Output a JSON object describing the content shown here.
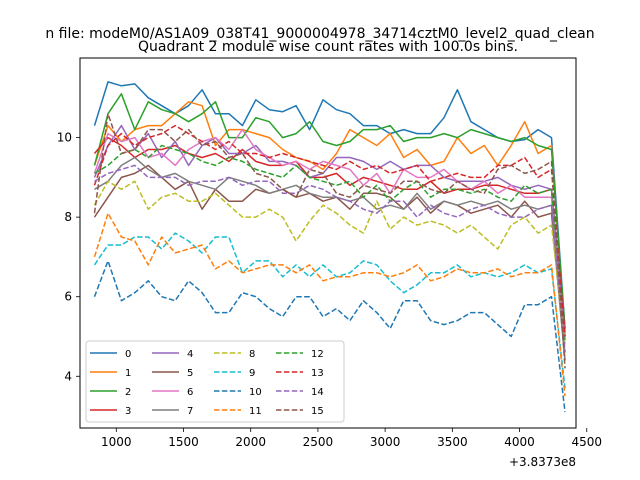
{
  "figure": {
    "suptitle": "n file: modeM0/AS1A09_038T41_9000004978_34714cztM0_level2_quad_clean",
    "title": "Quadrant 2 module wise count rates with 100.0s bins.",
    "offset_label": "+3.8373e8"
  },
  "chart_data": {
    "type": "line",
    "title": "Quadrant 2 module wise count rates with 100.0s bins.",
    "xlabel": "",
    "ylabel": "",
    "xlim": [
      730,
      4420
    ],
    "ylim": [
      2.7,
      12.0
    ],
    "xticks": [
      1000,
      1500,
      2000,
      2500,
      3000,
      3500,
      4000,
      4500
    ],
    "yticks": [
      4,
      6,
      8,
      10
    ],
    "grid": false,
    "legend_position": "lower-left",
    "x": [
      838,
      938,
      1038,
      1138,
      1238,
      1338,
      1438,
      1538,
      1638,
      1738,
      1838,
      1938,
      2038,
      2138,
      2238,
      2338,
      2438,
      2538,
      2638,
      2738,
      2838,
      2938,
      3038,
      3138,
      3238,
      3338,
      3438,
      3538,
      3638,
      3738,
      3838,
      3938,
      4038,
      4138,
      4238,
      4338
    ],
    "series": [
      {
        "name": "0",
        "color": "#1f77b4",
        "dash": "solid",
        "values": [
          10.3,
          11.4,
          11.3,
          11.35,
          11.0,
          10.8,
          10.6,
          10.8,
          11.2,
          10.6,
          10.6,
          10.3,
          10.95,
          10.7,
          10.65,
          10.8,
          10.2,
          10.95,
          10.7,
          10.6,
          10.3,
          10.3,
          10.1,
          10.2,
          10.1,
          10.1,
          10.5,
          11.2,
          10.4,
          10.2,
          10.0,
          9.9,
          9.95,
          10.2,
          10.0,
          5.2
        ]
      },
      {
        "name": "1",
        "color": "#ff7f0e",
        "dash": "solid",
        "values": [
          9.3,
          10.3,
          9.9,
          10.2,
          10.3,
          10.3,
          10.6,
          10.9,
          10.8,
          9.8,
          10.2,
          10.2,
          10.1,
          10.0,
          9.7,
          9.5,
          9.4,
          9.2,
          9.6,
          10.2,
          10.0,
          9.8,
          10.1,
          9.5,
          9.7,
          9.3,
          9.4,
          10.0,
          9.6,
          9.8,
          9.3,
          9.8,
          10.4,
          9.6,
          9.8,
          5.0
        ]
      },
      {
        "name": "2",
        "color": "#2ca02c",
        "dash": "solid",
        "values": [
          9.3,
          10.6,
          11.1,
          10.2,
          10.9,
          10.7,
          10.6,
          10.4,
          10.6,
          10.9,
          10.0,
          10.0,
          10.5,
          10.4,
          10.0,
          10.1,
          10.4,
          9.9,
          9.8,
          9.9,
          10.2,
          10.2,
          10.3,
          9.9,
          10.0,
          10.0,
          10.1,
          10.0,
          10.2,
          10.1,
          10.0,
          9.9,
          10.0,
          9.8,
          9.7,
          5.2
        ]
      },
      {
        "name": "3",
        "color": "#d62728",
        "dash": "solid",
        "values": [
          9.6,
          10.0,
          9.8,
          9.5,
          9.7,
          9.7,
          9.8,
          9.6,
          9.5,
          9.6,
          9.4,
          9.7,
          9.4,
          9.3,
          9.3,
          9.4,
          9.0,
          9.0,
          9.1,
          8.8,
          9.0,
          8.9,
          8.8,
          8.7,
          8.7,
          8.9,
          8.6,
          8.7,
          8.7,
          8.8,
          8.8,
          8.7,
          8.6,
          8.6,
          8.7,
          5.1
        ]
      },
      {
        "name": "4",
        "color": "#9467bd",
        "dash": "solid",
        "values": [
          9.0,
          9.8,
          10.3,
          9.7,
          10.1,
          9.5,
          9.9,
          9.3,
          9.8,
          10.0,
          9.6,
          9.6,
          9.8,
          9.4,
          9.4,
          9.3,
          9.0,
          9.1,
          9.5,
          9.5,
          9.4,
          9.2,
          9.4,
          9.2,
          9.3,
          9.3,
          9.0,
          8.9,
          8.9,
          8.9,
          9.0,
          8.8,
          8.7,
          8.8,
          8.7,
          5.0
        ]
      },
      {
        "name": "5",
        "color": "#8c564b",
        "dash": "solid",
        "values": [
          8.0,
          8.5,
          9.0,
          9.1,
          9.3,
          9.0,
          8.7,
          8.9,
          8.2,
          8.7,
          8.4,
          8.4,
          8.7,
          8.6,
          8.7,
          8.5,
          8.6,
          8.4,
          8.5,
          8.2,
          8.6,
          8.6,
          8.5,
          8.2,
          8.5,
          8.1,
          8.4,
          8.3,
          8.1,
          8.2,
          8.3,
          8.0,
          8.4,
          8.0,
          8.1,
          4.4
        ]
      },
      {
        "name": "6",
        "color": "#e377c2",
        "dash": "solid",
        "values": [
          9.1,
          10.1,
          9.9,
          10.0,
          9.5,
          9.6,
          9.3,
          9.7,
          9.9,
          10.0,
          9.7,
          10.2,
          9.7,
          9.5,
          9.3,
          9.4,
          9.2,
          9.4,
          9.3,
          9.2,
          8.8,
          9.1,
          8.6,
          9.2,
          9.0,
          9.0,
          9.2,
          8.9,
          8.7,
          8.9,
          8.6,
          8.8,
          8.5,
          8.5,
          8.5,
          4.6
        ]
      },
      {
        "name": "7",
        "color": "#7f7f7f",
        "dash": "solid",
        "values": [
          8.7,
          8.9,
          9.3,
          9.5,
          9.2,
          9.0,
          9.1,
          8.9,
          8.8,
          8.7,
          9.0,
          8.9,
          8.8,
          8.6,
          8.7,
          8.8,
          8.6,
          8.5,
          8.5,
          8.4,
          8.5,
          8.2,
          8.3,
          8.2,
          8.6,
          8.2,
          8.4,
          8.3,
          8.4,
          8.3,
          8.4,
          8.2,
          8.3,
          8.2,
          8.3,
          4.4
        ]
      },
      {
        "name": "8",
        "color": "#bcbd22",
        "dash": "dashed",
        "values": [
          8.3,
          8.9,
          8.7,
          8.9,
          8.2,
          8.5,
          8.6,
          8.4,
          8.4,
          8.6,
          8.3,
          8.0,
          8.0,
          8.2,
          8.0,
          7.4,
          7.9,
          8.3,
          8.1,
          7.8,
          7.6,
          8.4,
          7.7,
          8.0,
          7.8,
          7.9,
          7.8,
          7.6,
          7.8,
          7.5,
          7.2,
          7.8,
          8.0,
          7.6,
          7.8,
          4.8
        ]
      },
      {
        "name": "9",
        "color": "#17becf",
        "dash": "dashed",
        "values": [
          6.8,
          7.3,
          7.3,
          7.5,
          7.5,
          7.2,
          7.6,
          7.4,
          7.1,
          7.5,
          7.5,
          6.6,
          6.9,
          6.9,
          6.5,
          6.8,
          6.5,
          6.8,
          6.5,
          6.6,
          6.9,
          6.8,
          6.4,
          6.1,
          6.3,
          6.6,
          6.6,
          6.8,
          6.5,
          6.6,
          6.5,
          6.6,
          6.8,
          6.6,
          6.7,
          3.7
        ]
      },
      {
        "name": "10",
        "color": "#1f77b4",
        "dash": "dashed",
        "values": [
          6.0,
          6.9,
          5.9,
          6.1,
          6.4,
          6.0,
          5.9,
          6.4,
          6.1,
          5.6,
          5.6,
          6.1,
          6.0,
          5.7,
          5.5,
          6.0,
          6.0,
          5.5,
          5.7,
          5.4,
          5.9,
          5.6,
          5.2,
          5.9,
          5.9,
          5.4,
          5.3,
          5.4,
          5.6,
          5.6,
          5.3,
          5.0,
          5.8,
          5.8,
          6.0,
          3.1
        ]
      },
      {
        "name": "11",
        "color": "#ff7f0e",
        "dash": "dashed",
        "values": [
          7.0,
          8.1,
          7.5,
          7.4,
          6.8,
          7.5,
          7.1,
          7.2,
          7.3,
          6.7,
          6.9,
          6.6,
          6.7,
          6.8,
          6.8,
          6.6,
          6.8,
          6.4,
          6.5,
          6.5,
          6.6,
          6.6,
          6.5,
          6.6,
          6.8,
          6.4,
          6.5,
          6.7,
          6.6,
          6.6,
          6.7,
          6.5,
          6.6,
          6.6,
          6.8,
          3.5
        ]
      },
      {
        "name": "12",
        "color": "#2ca02c",
        "dash": "dashed",
        "values": [
          9.1,
          9.3,
          9.6,
          9.7,
          9.5,
          9.8,
          9.7,
          9.6,
          9.4,
          9.3,
          9.5,
          9.4,
          9.2,
          9.1,
          9.0,
          9.3,
          9.0,
          8.9,
          8.8,
          8.9,
          8.5,
          8.8,
          8.4,
          8.7,
          8.9,
          8.5,
          8.7,
          8.7,
          8.6,
          8.7,
          8.5,
          8.4,
          8.8,
          8.6,
          8.7,
          4.9
        ]
      },
      {
        "name": "13",
        "color": "#d62728",
        "dash": "dashed",
        "values": [
          8.8,
          9.8,
          10.1,
          9.8,
          10.0,
          10.1,
          10.3,
          10.1,
          9.9,
          9.7,
          9.9,
          9.6,
          9.6,
          9.5,
          9.6,
          9.5,
          9.4,
          9.3,
          9.2,
          9.4,
          9.2,
          9.3,
          9.1,
          9.2,
          9.3,
          8.9,
          9.0,
          9.1,
          9.0,
          9.0,
          9.3,
          9.3,
          9.5,
          9.0,
          9.2,
          5.0
        ]
      },
      {
        "name": "14",
        "color": "#9467bd",
        "dash": "dashed",
        "values": [
          8.9,
          9.1,
          9.2,
          9.3,
          9.0,
          9.0,
          9.0,
          8.8,
          8.9,
          8.9,
          9.0,
          8.8,
          8.9,
          8.9,
          8.6,
          8.6,
          8.8,
          8.7,
          8.5,
          8.4,
          8.2,
          8.1,
          8.4,
          8.4,
          8.0,
          8.3,
          8.1,
          8.0,
          8.2,
          8.3,
          8.1,
          8.0,
          8.0,
          8.2,
          8.3,
          4.6
        ]
      },
      {
        "name": "15",
        "color": "#8c564b",
        "dash": "dashed",
        "values": [
          8.1,
          10.6,
          9.6,
          9.7,
          10.2,
          10.2,
          9.9,
          10.2,
          9.8,
          9.9,
          9.5,
          9.6,
          9.1,
          9.0,
          8.7,
          8.5,
          9.2,
          9.1,
          8.6,
          8.5,
          8.8,
          8.7,
          8.6,
          8.9,
          8.9,
          8.7,
          8.6,
          8.9,
          8.7,
          8.6,
          9.2,
          9.3,
          9.1,
          9.2,
          9.4,
          4.2
        ]
      }
    ]
  }
}
